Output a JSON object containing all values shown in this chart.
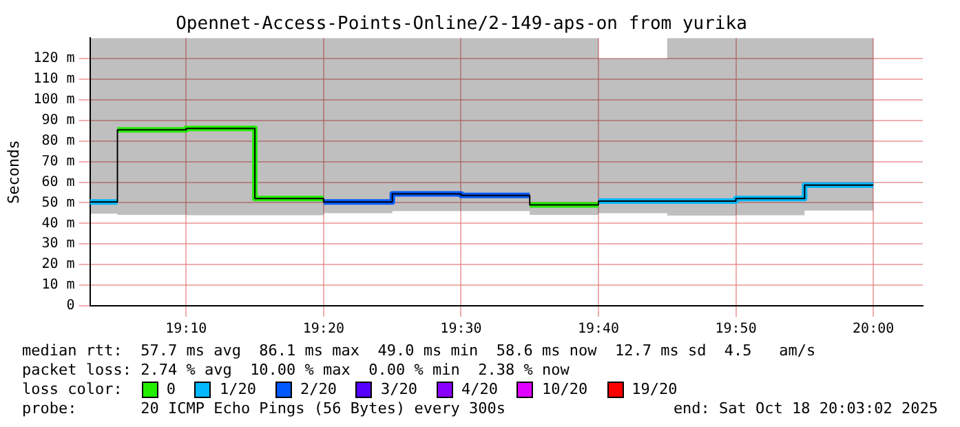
{
  "chart_data": {
    "type": "step",
    "title": "Opennet-Access-Points-Online/2-149-aps-on from yurika",
    "ylabel": "Seconds",
    "x": [
      19.05,
      19.083333,
      19.166667,
      19.25,
      19.333333,
      19.416667,
      19.5,
      19.583333,
      19.666667,
      19.75,
      19.833333,
      19.916667,
      20.0
    ],
    "xlim": [
      19.05,
      20.06
    ],
    "xticks": [
      {
        "value": 19.166667,
        "label": "19:10"
      },
      {
        "value": 19.333333,
        "label": "19:20"
      },
      {
        "value": 19.5,
        "label": "19:30"
      },
      {
        "value": 19.666667,
        "label": "19:40"
      },
      {
        "value": 19.833333,
        "label": "19:50"
      },
      {
        "value": 20.0,
        "label": "20:00"
      }
    ],
    "ylim": [
      0,
      130
    ],
    "yticks": [
      0,
      {
        "value": 10,
        "label": "10 m"
      },
      {
        "value": 20,
        "label": "20 m"
      },
      {
        "value": 30,
        "label": "30 m"
      },
      {
        "value": 40,
        "label": "40 m"
      },
      {
        "value": 50,
        "label": "50 m"
      },
      {
        "value": 60,
        "label": "60 m"
      },
      {
        "value": 70,
        "label": "70 m"
      },
      {
        "value": 80,
        "label": "80 m"
      },
      {
        "value": 90,
        "label": "90 m"
      },
      {
        "value": 100,
        "label": "100 m"
      },
      {
        "value": 110,
        "label": "110 m"
      },
      {
        "value": 120,
        "label": "120 m"
      }
    ],
    "grid": true,
    "legend": "bottom",
    "legend_title": "loss color:",
    "series": [
      {
        "color": "#000000",
        "values": [
          50.4,
          85.4,
          86.1,
          52.1,
          50.4,
          54.3,
          53.6,
          49.0,
          50.8,
          50.8,
          52.1,
          58.6,
          58.6
        ],
        "lower": [
          44.7,
          44.1,
          44.0,
          44.0,
          45.0,
          46.0,
          46.0,
          44.1,
          45.0,
          43.8,
          44.0,
          46.2,
          46.2
        ],
        "upper": [
          130,
          130,
          130,
          130,
          130,
          130,
          130,
          130,
          120,
          130,
          130,
          130,
          130
        ]
      },
      {
        "name": "0",
        "color": "#22ee00",
        "x": [
          19.083333,
          19.166667,
          19.25,
          19.333333,
          19.45,
          19.583333,
          19.666667
        ],
        "values": [
          85.4,
          86.1,
          52.1,
          52.1,
          null,
          49.0,
          49.0
        ]
      },
      {
        "name": "1/20",
        "color": "#00b8ff",
        "x": [
          19.05,
          19.083333,
          19.3,
          19.666667,
          19.75,
          19.833333,
          19.916667,
          20.0
        ],
        "values": [
          50.4,
          50.4,
          null,
          50.8,
          50.8,
          52.1,
          58.6,
          58.6
        ]
      },
      {
        "name": "2/20",
        "color": "#0059ff",
        "x": [
          19.333333,
          19.416667,
          19.5,
          19.583333
        ],
        "values": [
          50.4,
          54.3,
          53.6,
          53.6
        ]
      },
      {
        "name": "3/20",
        "color": "#5500ff",
        "values": [
          null,
          null,
          null,
          null,
          null,
          null,
          null,
          null,
          null,
          null,
          null,
          null,
          null
        ]
      },
      {
        "name": "4/20",
        "color": "#8a00ff",
        "values": [
          null,
          null,
          null,
          null,
          null,
          null,
          null,
          null,
          null,
          null,
          null,
          null,
          null
        ]
      },
      {
        "name": "10/20",
        "color": "#e000ff",
        "values": [
          null,
          null,
          null,
          null,
          null,
          null,
          null,
          null,
          null,
          null,
          null,
          null,
          null
        ]
      },
      {
        "name": "19/20",
        "color": "#ff0000",
        "values": [
          null,
          null,
          null,
          null,
          null,
          null,
          null,
          null,
          null,
          null,
          null,
          null,
          null
        ]
      }
    ],
    "annotations": [
      "median rtt:  57.7 ms avg  86.1 ms max  49.0 ms min  58.6 ms now  12.7 ms sd  4.5   am/s",
      "packet loss: 2.74 % avg  10.00 % max  0.00 % min  2.38 % now",
      "probe:       20 ICMP Echo Pings (56 Bytes) every 300s",
      "end: Sat Oct 18 20:03:02 2025"
    ]
  }
}
